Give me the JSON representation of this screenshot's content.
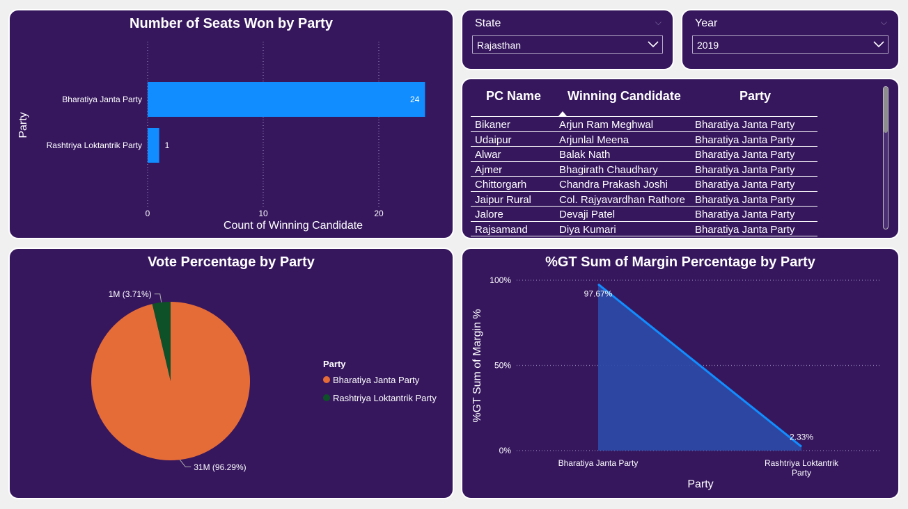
{
  "seats_chart": {
    "title": "Number of Seats Won by Party",
    "chart_data": {
      "type": "bar",
      "orientation": "horizontal",
      "title": "Number of Seats Won by Party",
      "categories": [
        "Bharatiya Janta Party",
        "Rashtriya Loktantrik Party"
      ],
      "values": [
        24,
        1
      ],
      "data_labels": [
        "24",
        "1"
      ],
      "xlabel": "Count of Winning Candidate",
      "ylabel": "Party",
      "xticks": [
        "0",
        "10",
        "20"
      ],
      "xlim": [
        0,
        25
      ],
      "grid": true,
      "bar_color": "#118dff"
    }
  },
  "state_slicer": {
    "label": "State",
    "value": "Rajasthan"
  },
  "year_slicer": {
    "label": "Year",
    "value": "2019"
  },
  "results_table": {
    "headers": [
      "PC Name",
      "Winning Candidate",
      "Party"
    ],
    "sort_column": "Winning Candidate",
    "rows": [
      [
        "Bikaner",
        "Arjun Ram Meghwal",
        "Bharatiya Janta Party"
      ],
      [
        "Udaipur",
        "Arjunlal Meena",
        "Bharatiya Janta Party"
      ],
      [
        "Alwar",
        "Balak Nath",
        "Bharatiya Janta Party"
      ],
      [
        "Ajmer",
        "Bhagirath Chaudhary",
        "Bharatiya Janta Party"
      ],
      [
        "Chittorgarh",
        "Chandra Prakash Joshi",
        "Bharatiya Janta Party"
      ],
      [
        "Jaipur Rural",
        "Col. Rajyavardhan Rathore",
        "Bharatiya Janta Party"
      ],
      [
        "Jalore",
        "Devaji Patel",
        "Bharatiya Janta Party"
      ],
      [
        "Rajsamand",
        "Diya Kumari",
        "Bharatiya Janta Party"
      ]
    ]
  },
  "vote_chart": {
    "title": "Vote Percentage by Party",
    "chart_data": {
      "type": "pie",
      "title": "Vote Percentage by Party",
      "labels": [
        "Bharatiya Janta Party",
        "Rashtriya Loktantrik Party"
      ],
      "values": [
        96.29,
        3.71
      ],
      "data_labels": [
        "31M (96.29%)",
        "1M (3.71%)"
      ],
      "colors": [
        "#e66c37",
        "#0e5128"
      ],
      "legend_title": "Party",
      "legend": "right"
    }
  },
  "margin_chart": {
    "title": "%GT Sum of Margin Percentage by Party",
    "chart_data": {
      "type": "area",
      "title": "%GT Sum of Margin Percentage by Party",
      "categories": [
        "Bharatiya Janta Party",
        "Rashtriya Loktantrik Party"
      ],
      "values": [
        97.67,
        2.33
      ],
      "data_labels": [
        "97.67%",
        "2.33%"
      ],
      "xlabel": "Party",
      "ylabel": "%GT Sum of Margin %",
      "yticks": [
        "0%",
        "50%",
        "100%"
      ],
      "ylim": [
        0,
        100
      ],
      "grid": true,
      "line_color": "#118dff",
      "fill_color": "#2b4ba8"
    }
  }
}
